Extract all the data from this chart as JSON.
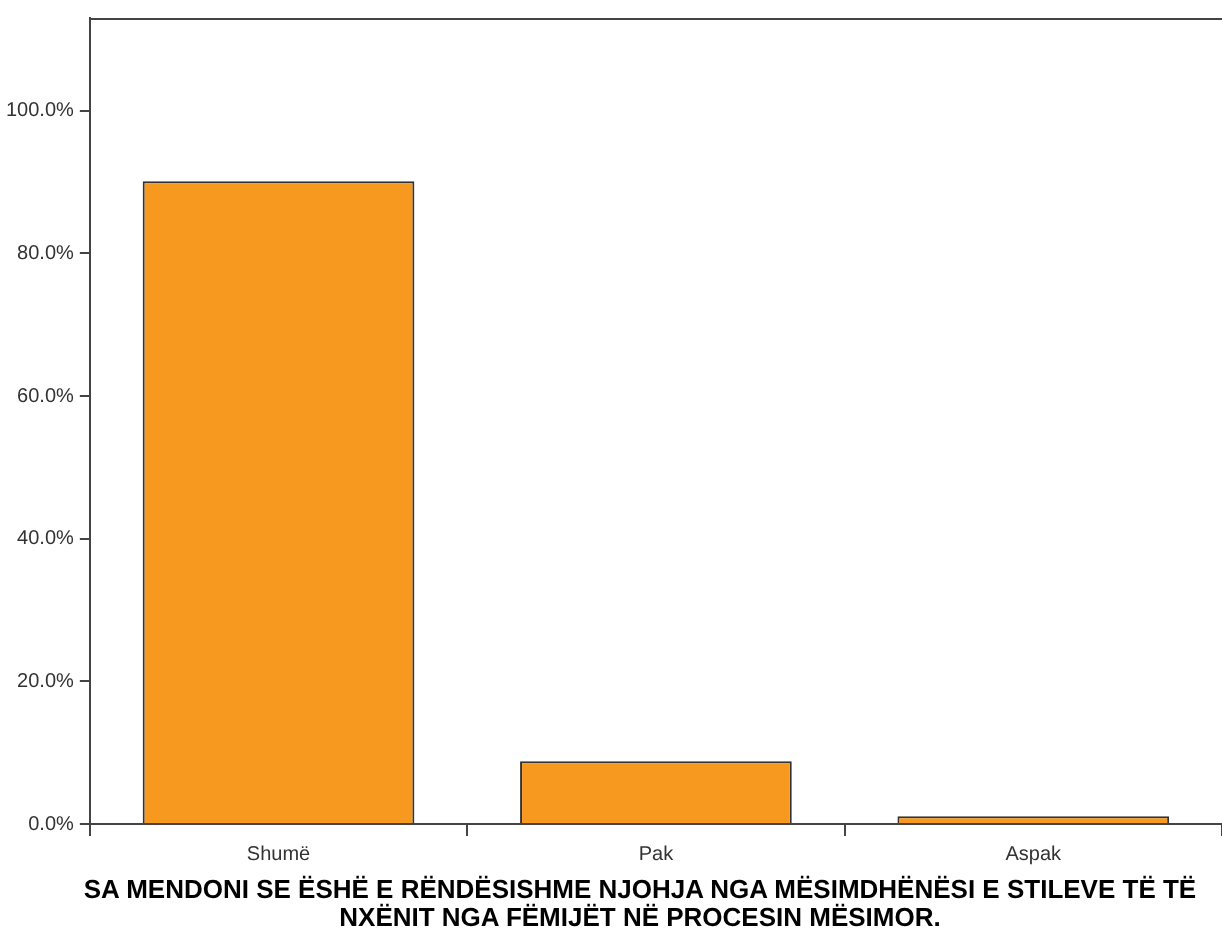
{
  "chart_data": {
    "type": "bar",
    "xlabel": "SA MENDONI SE ËSHË E RËNDËSISHME NJOHJA NGA MËSIMDHËNËSI E STILEVE TË TË NXËNIT NGA FËMIJËT NË PROCESIN MËSIMOR.",
    "categories": [
      "Shumë",
      "Pak",
      "Aspak"
    ],
    "values": [
      90.1,
      8.8,
      1.1
    ],
    "color": "#f7991f",
    "ylim": [
      0,
      113
    ],
    "yticks": [
      {
        "value": 0,
        "label": "0.0%"
      },
      {
        "value": 20,
        "label": "20.0%"
      },
      {
        "value": 40,
        "label": "40.0%"
      },
      {
        "value": 60,
        "label": "60.0%"
      },
      {
        "value": 80,
        "label": "80.0%"
      },
      {
        "value": 100,
        "label": "100.0%"
      }
    ],
    "grid": false,
    "legend": false
  }
}
